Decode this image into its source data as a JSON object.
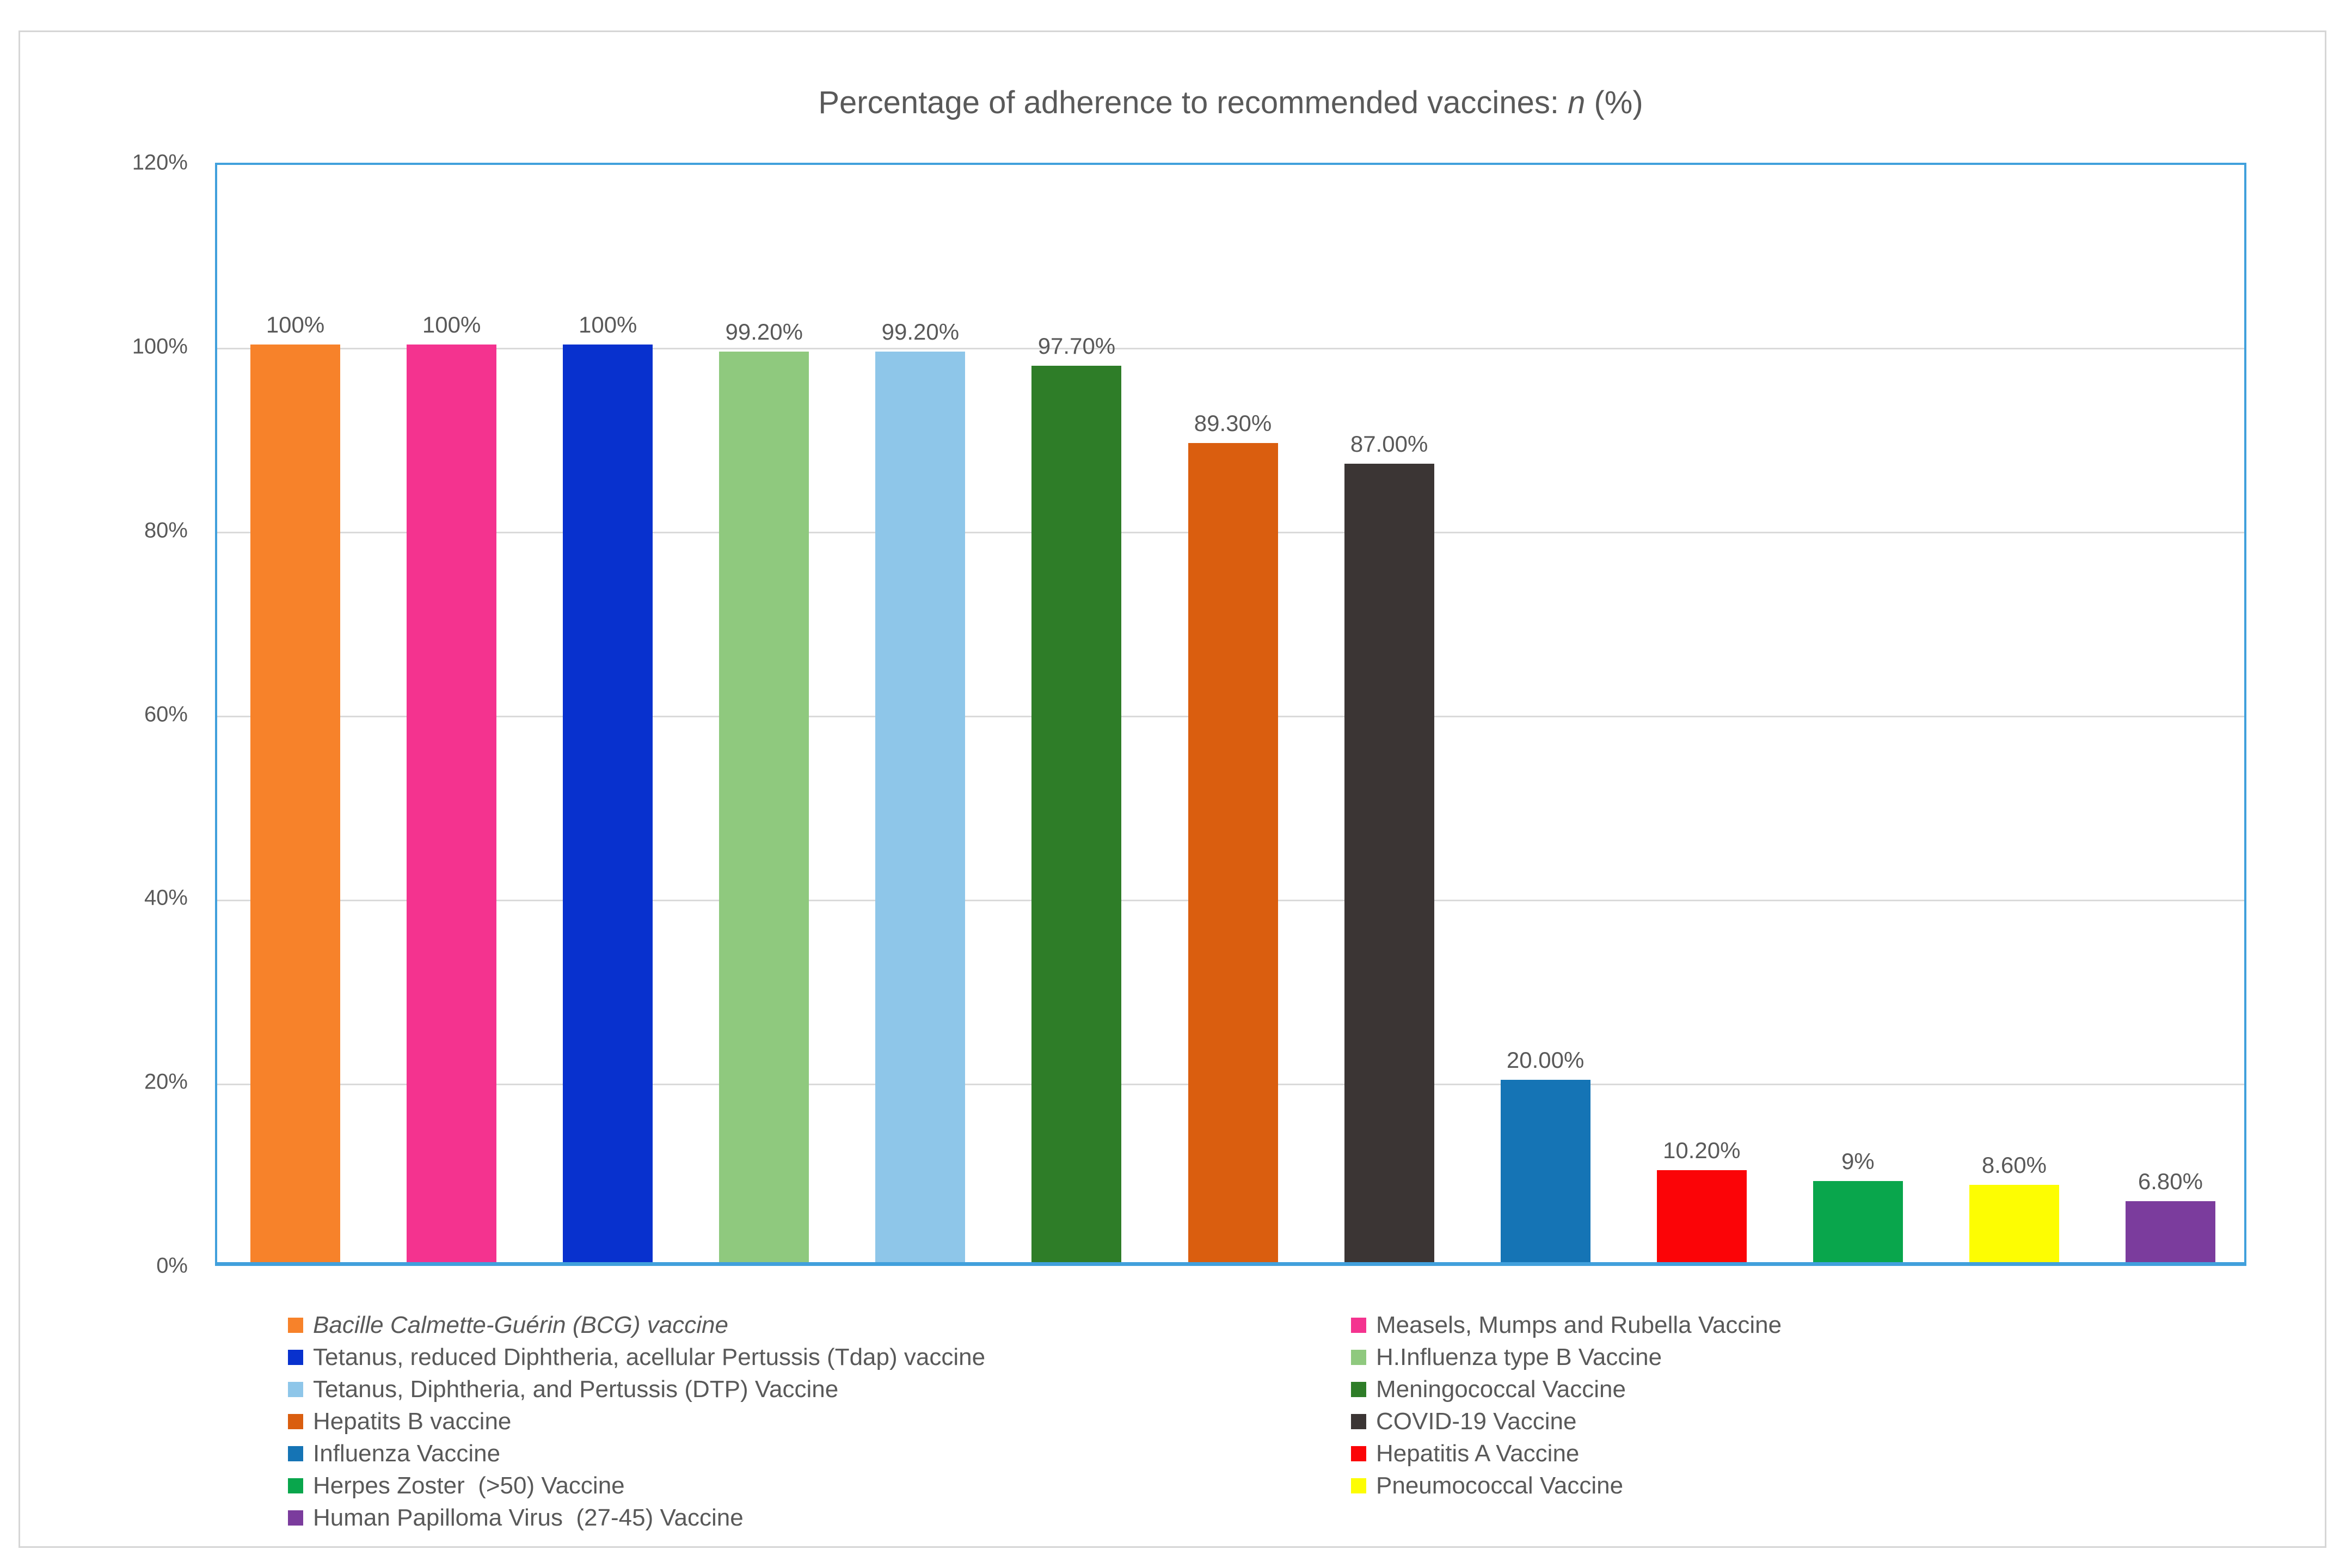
{
  "title": {
    "prefix": "Percentage of adherence to recommended vaccines: ",
    "italic_part": "n",
    "suffix": " (%)"
  },
  "colors": {
    "axis_border": "#41a0dc",
    "gridline": "#dadada",
    "text": "#595959",
    "figure_border": "#d6d6d6"
  },
  "chart_data": {
    "type": "bar",
    "title": "Percentage of adherence to recommended vaccines: n (%)",
    "xlabel": "",
    "ylabel": "",
    "ylim": [
      0,
      120
    ],
    "grid": true,
    "legend_position": "bottom-two-columns",
    "yticks": [
      {
        "value": 0,
        "label": "0%"
      },
      {
        "value": 20,
        "label": "20%"
      },
      {
        "value": 40,
        "label": "40%"
      },
      {
        "value": 60,
        "label": "60%"
      },
      {
        "value": 80,
        "label": "80%"
      },
      {
        "value": 100,
        "label": "100%"
      },
      {
        "value": 120,
        "label": "120%"
      }
    ],
    "bars": [
      {
        "name": "Bacille Calmette-Guérin (BCG) vaccine",
        "value": 100,
        "value_label": "100%",
        "color": "#f7822a"
      },
      {
        "name": "Measels, Mumps and Rubella Vaccine",
        "value": 100,
        "value_label": "100%",
        "color": "#f4338f"
      },
      {
        "name": "Tetanus, reduced Diphtheria, acellular Pertussis (Tdap) vaccine",
        "value": 100,
        "value_label": "100%",
        "color": "#0831ce"
      },
      {
        "name": "H.Influenza type B Vaccine",
        "value": 99.2,
        "value_label": "99.20%",
        "color": "#8fc97e"
      },
      {
        "name": "Tetanus, Diphtheria, and Pertussis (DTP) Vaccine",
        "value": 99.2,
        "value_label": "99.20%",
        "color": "#8ec6e9"
      },
      {
        "name": "Meningococcal Vaccine",
        "value": 97.7,
        "value_label": "97.70%",
        "color": "#2e7d28"
      },
      {
        "name": "Hepatits B vaccine",
        "value": 89.3,
        "value_label": "89.30%",
        "color": "#da5e0f"
      },
      {
        "name": "COVID-19 Vaccine",
        "value": 87,
        "value_label": "87.00%",
        "color": "#3b3534"
      },
      {
        "name": "Influenza Vaccine",
        "value": 20,
        "value_label": "20.00%",
        "color": "#1574b5"
      },
      {
        "name": "Hepatitis A Vaccine",
        "value": 10.2,
        "value_label": "10.20%",
        "color": "#fb0407"
      },
      {
        "name": "Herpes Zoster  (>50) Vaccine",
        "value": 9,
        "value_label": "9%",
        "color": "#09a64c"
      },
      {
        "name": "Pneumococcal Vaccine",
        "value": 8.6,
        "value_label": "8.60%",
        "color": "#fdfd02"
      },
      {
        "name": "Human Papilloma Virus  (27-45) Vaccine",
        "value": 6.8,
        "value_label": "6.80%",
        "color": "#7b3c9d"
      }
    ]
  },
  "legend": {
    "columns": [
      {
        "items": [
          {
            "label": "Bacille Calmette-Guérin (BCG) vaccine",
            "color": "#f7822a",
            "italic": true
          },
          {
            "label": "Tetanus, reduced Diphtheria, acellular Pertussis (Tdap) vaccine",
            "color": "#0831ce",
            "italic": false
          },
          {
            "label": "Tetanus, Diphtheria, and Pertussis (DTP) Vaccine",
            "color": "#8ec6e9",
            "italic": false
          },
          {
            "label": "Hepatits B vaccine",
            "color": "#da5e0f",
            "italic": false
          },
          {
            "label": "Influenza Vaccine",
            "color": "#1574b5",
            "italic": false
          },
          {
            "label": "Herpes Zoster  (>50) Vaccine",
            "color": "#09a64c",
            "italic": false
          },
          {
            "label": "Human Papilloma Virus  (27-45) Vaccine",
            "color": "#7b3c9d",
            "italic": false
          }
        ]
      },
      {
        "items": [
          {
            "label": "Measels, Mumps and Rubella Vaccine",
            "color": "#f4338f",
            "italic": false
          },
          {
            "label": "H.Influenza type B Vaccine",
            "color": "#8fc97e",
            "italic": false
          },
          {
            "label": "Meningococcal Vaccine",
            "color": "#2e7d28",
            "italic": false
          },
          {
            "label": "COVID-19 Vaccine",
            "color": "#3b3534",
            "italic": false
          },
          {
            "label": "Hepatitis A Vaccine",
            "color": "#fb0407",
            "italic": false
          },
          {
            "label": "Pneumococcal Vaccine",
            "color": "#fdfd02",
            "italic": false
          }
        ]
      }
    ]
  }
}
